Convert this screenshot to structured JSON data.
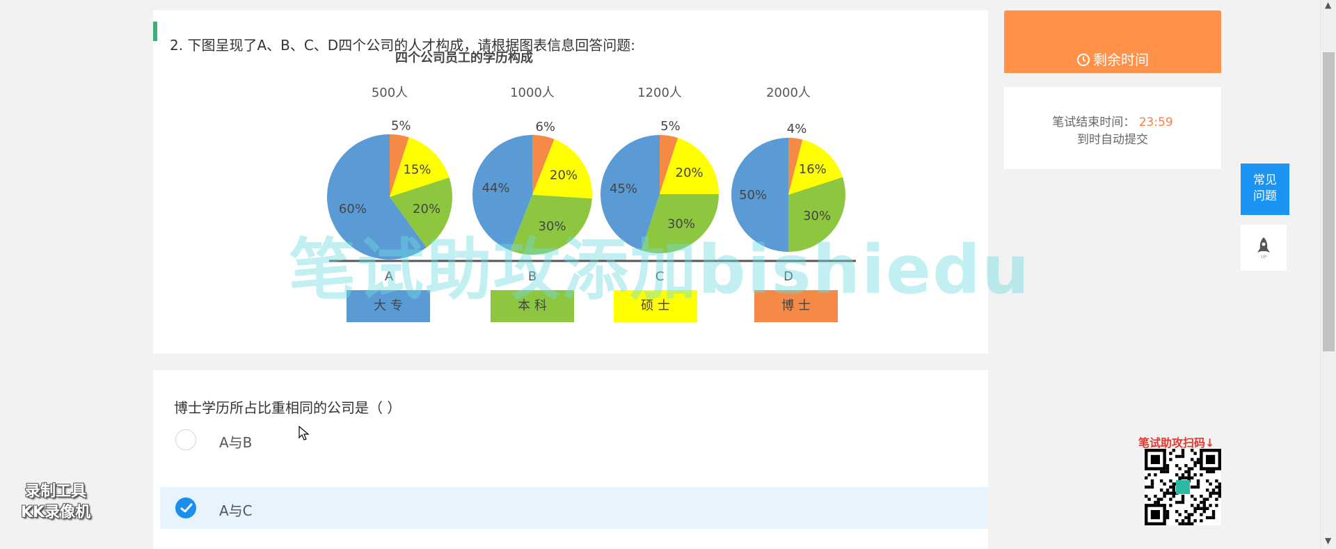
{
  "question": {
    "title": "2.  下图呈现了A、B、C、D四个公司的人才构成，请根据图表信息回答问题:",
    "sub_question": "博士学历所占比重相同的公司是（ ）"
  },
  "options": [
    {
      "label": "A与B",
      "selected": false
    },
    {
      "label": "A与C",
      "selected": true
    }
  ],
  "timer": {
    "header": "剩余时间",
    "end_label": "笔试结束时间：",
    "end_time": "23:59",
    "auto_submit": "到时自动提交"
  },
  "side": {
    "faq_line1": "常见",
    "faq_line2": "问题"
  },
  "qr_label": "笔试助攻扫码↓",
  "recorder": {
    "line1": "录制工具",
    "line2": "KK录像机"
  },
  "watermark": "笔试助攻添加bishiedu",
  "chart_data": {
    "type": "pie",
    "title": "四个公司员工的学历构成",
    "categories": [
      "大 专",
      "本 科",
      "硕 士",
      "博 士"
    ],
    "colors": [
      "#5b9bd5",
      "#8dc63f",
      "#ffff00",
      "#f48a45"
    ],
    "pies": [
      {
        "company": "A",
        "total": "500人",
        "values": [
          60,
          20,
          15,
          5
        ]
      },
      {
        "company": "B",
        "total": "1000人",
        "values": [
          44,
          30,
          20,
          6
        ]
      },
      {
        "company": "C",
        "total": "1200人",
        "values": [
          45,
          30,
          20,
          5
        ]
      },
      {
        "company": "D",
        "total": "2000人",
        "values": [
          50,
          30,
          16,
          4
        ]
      }
    ]
  }
}
